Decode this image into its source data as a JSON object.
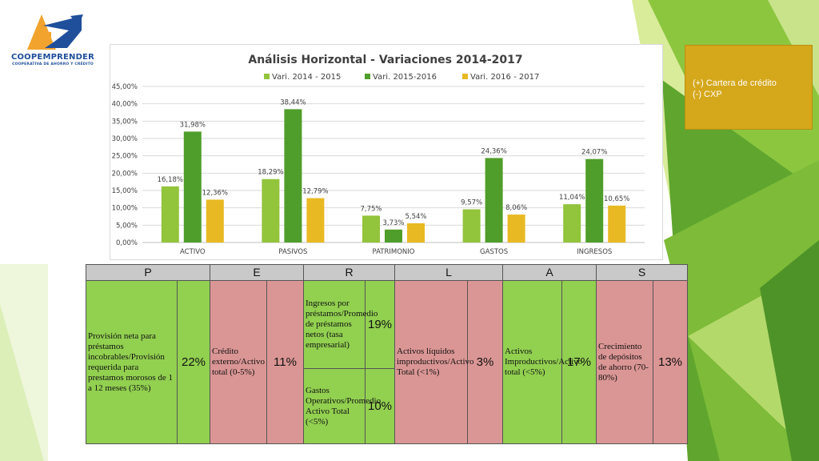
{
  "logo": {
    "name": "COOPEMPRENDER",
    "tagline": "COOPERATIVA DE AHORRO Y CRÉDITO"
  },
  "colors": {
    "series1": "#92c43c",
    "series2": "#4f9d2a",
    "series3": "#e8b923",
    "note_bg": "#d5a71b",
    "cell_green": "#92d050",
    "cell_red": "#da9694",
    "header": "#c9c9c9"
  },
  "chart_data": {
    "type": "bar",
    "title": "Análisis Horizontal - Variaciones 2014-2017",
    "categories": [
      "ACTIVO",
      "PASIVOS",
      "PATRIMONIO",
      "GASTOS",
      "INGRESOS"
    ],
    "series": [
      {
        "name": "Vari. 2014 - 2015",
        "values": [
          16.18,
          18.29,
          7.75,
          9.57,
          11.04
        ],
        "labels": [
          "16,18%",
          "18,29%",
          "7,75%",
          "9,57%",
          "11,04%"
        ]
      },
      {
        "name": "Vari. 2015-2016",
        "values": [
          31.98,
          38.44,
          3.73,
          24.36,
          24.07
        ],
        "labels": [
          "31,98%",
          "38,44%",
          "3,73%",
          "24,36%",
          "24,07%"
        ]
      },
      {
        "name": "Vari. 2016 - 2017",
        "values": [
          12.36,
          12.79,
          5.54,
          8.06,
          10.65
        ],
        "labels": [
          "12,36%",
          "12,79%",
          "5,54%",
          "8,06%",
          "10,65%"
        ]
      }
    ],
    "yticks": [
      "0,00%",
      "5,00%",
      "10,00%",
      "15,00%",
      "20,00%",
      "25,00%",
      "30,00%",
      "35,00%",
      "40,00%",
      "45,00%"
    ],
    "ylim": [
      0,
      45
    ],
    "legend": "top",
    "grid": true
  },
  "note": {
    "line1": "(+) Cartera de crédito",
    "line2": "(-) CXP"
  },
  "table": {
    "headers": [
      "P",
      "E",
      "R",
      "L",
      "A",
      "S"
    ],
    "p_desc": "Provisión neta para préstamos incobrables/Provisión requerida para prestamos morosos de 1 a 12 meses (35%)",
    "p_val": "22%",
    "e_desc": "Crédito externo/Activo total  (0-5%)",
    "e_val": "11%",
    "r1_desc": "Ingresos por préstamos/Promedio de préstamos netos (tasa empresarial)",
    "r1_val": "19%",
    "r2_desc": "Gastos Operativos/Promedio Activo Total (<5%)",
    "r2_val": "10%",
    "l_desc": "Activos líquidos improductivos/Activo Total (<1%)",
    "l_val": "3%",
    "a_desc": "Activos Improductivos/Activo total (<5%)",
    "a_val": "17%",
    "s_desc": "Crecimiento de depósitos de ahorro (70-80%)",
    "s_val": "13%"
  }
}
